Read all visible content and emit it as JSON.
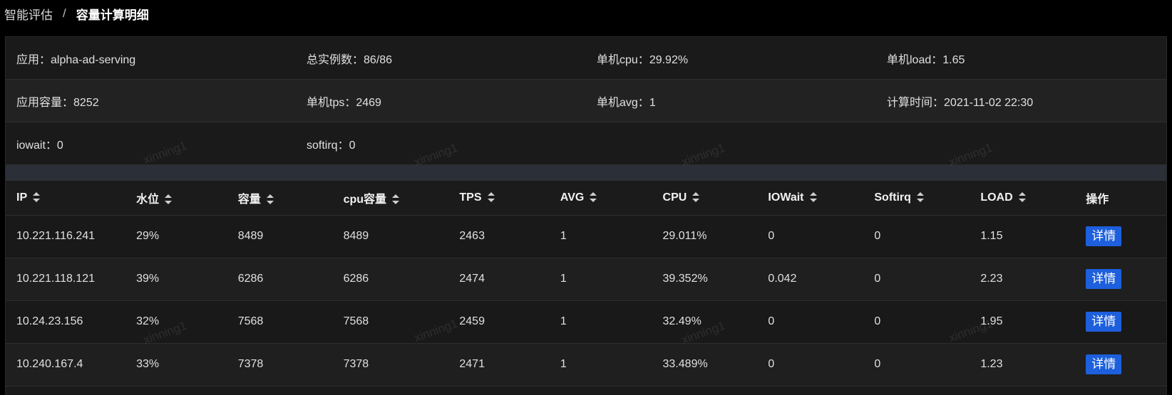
{
  "breadcrumb": {
    "parent": "智能评估",
    "separator": "/",
    "current": "容量计算明细"
  },
  "summary": {
    "rows": [
      [
        {
          "label": "应用：",
          "value": "alpha-ad-serving"
        },
        {
          "label": "总实例数：",
          "value": "86/86"
        },
        {
          "label": "单机cpu：",
          "value": "29.92%"
        },
        {
          "label": "单机load：",
          "value": "1.65"
        }
      ],
      [
        {
          "label": "应用容量：",
          "value": "8252"
        },
        {
          "label": "单机tps：",
          "value": "2469"
        },
        {
          "label": "单机avg：",
          "value": "1"
        },
        {
          "label": "计算时间：",
          "value": "2021-11-02 22:30"
        }
      ],
      [
        {
          "label": "iowait：",
          "value": "0"
        },
        {
          "label": "softirq：",
          "value": "0"
        }
      ]
    ]
  },
  "table": {
    "columns": [
      "IP",
      "水位",
      "容量",
      "cpu容量",
      "TPS",
      "AVG",
      "CPU",
      "IOWait",
      "Softirq",
      "LOAD",
      "操作"
    ],
    "rows": [
      {
        "ip": "10.221.116.241",
        "level": "29%",
        "capacity": "8489",
        "cpu_capacity": "8489",
        "tps": "2463",
        "avg": "1",
        "cpu": "29.011%",
        "iowait": "0",
        "softirq": "0",
        "load": "1.15"
      },
      {
        "ip": "10.221.118.121",
        "level": "39%",
        "capacity": "6286",
        "cpu_capacity": "6286",
        "tps": "2474",
        "avg": "1",
        "cpu": "39.352%",
        "iowait": "0.042",
        "softirq": "0",
        "load": "2.23"
      },
      {
        "ip": "10.24.23.156",
        "level": "32%",
        "capacity": "7568",
        "cpu_capacity": "7568",
        "tps": "2459",
        "avg": "1",
        "cpu": "32.49%",
        "iowait": "0",
        "softirq": "0",
        "load": "1.95"
      },
      {
        "ip": "10.240.167.4",
        "level": "33%",
        "capacity": "7378",
        "cpu_capacity": "7378",
        "tps": "2471",
        "avg": "1",
        "cpu": "33.489%",
        "iowait": "0",
        "softirq": "0",
        "load": "1.23"
      }
    ],
    "action_label": "详情",
    "sort_icon": "sort-caret-icon"
  },
  "watermark": "xinning1",
  "colors": {
    "background": "#000000",
    "panel": "#1b1b1b",
    "band": "#2b2f38",
    "button": "#1d5fdc"
  }
}
